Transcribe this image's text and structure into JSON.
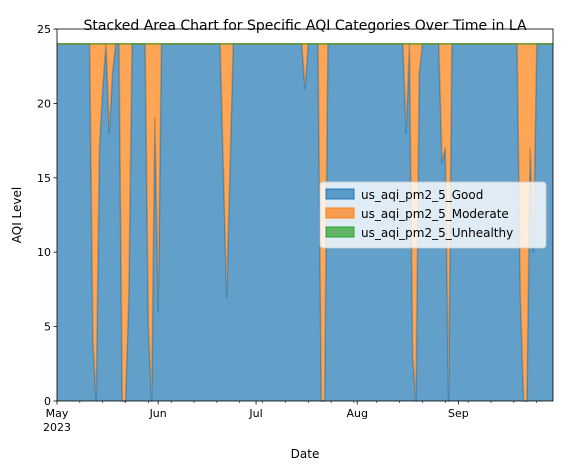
{
  "chart_data": {
    "type": "area",
    "stacked": true,
    "title": "Stacked Area Chart for Specific AQI Categories Over Time in LA",
    "xlabel": "Date",
    "ylabel": "AQI Level",
    "x_start": "2023-05-01",
    "x_end": "2023-09-30",
    "ylim": [
      0,
      25
    ],
    "y_ticks": [
      0,
      5,
      10,
      15,
      20,
      25
    ],
    "x_ticks": [
      {
        "date": "2023-05-01",
        "label": "May",
        "sublabel": "2023"
      },
      {
        "date": "2023-06-01",
        "label": "Jun",
        "sublabel": ""
      },
      {
        "date": "2023-07-01",
        "label": "Jul",
        "sublabel": ""
      },
      {
        "date": "2023-08-01",
        "label": "Aug",
        "sublabel": ""
      },
      {
        "date": "2023-09-01",
        "label": "Sep",
        "sublabel": ""
      }
    ],
    "minor_x_ticks": [
      "2023-05-08",
      "2023-05-15",
      "2023-05-22",
      "2023-05-29",
      "2023-06-05",
      "2023-06-12",
      "2023-06-19",
      "2023-06-26",
      "2023-07-03",
      "2023-07-10",
      "2023-07-17",
      "2023-07-24",
      "2023-07-31",
      "2023-08-07",
      "2023-08-14",
      "2023-08-21",
      "2023-08-28",
      "2023-09-04",
      "2023-09-11",
      "2023-09-18",
      "2023-09-25"
    ],
    "legend_position": "center-right",
    "grid": false,
    "series": [
      {
        "name": "us_aqi_pm2_5_Good",
        "color": "#1f77b4",
        "points": [
          [
            "2023-05-01",
            24
          ],
          [
            "2023-05-11",
            24
          ],
          [
            "2023-05-12",
            4
          ],
          [
            "2023-05-13",
            0
          ],
          [
            "2023-05-14",
            17
          ],
          [
            "2023-05-15",
            21
          ],
          [
            "2023-05-16",
            24
          ],
          [
            "2023-05-17",
            18
          ],
          [
            "2023-05-18",
            22
          ],
          [
            "2023-05-19",
            24
          ],
          [
            "2023-05-20",
            24
          ],
          [
            "2023-05-21",
            0
          ],
          [
            "2023-05-22",
            0
          ],
          [
            "2023-05-23",
            7
          ],
          [
            "2023-05-24",
            24
          ],
          [
            "2023-05-28",
            24
          ],
          [
            "2023-05-29",
            5
          ],
          [
            "2023-05-30",
            0
          ],
          [
            "2023-05-31",
            19
          ],
          [
            "2023-06-01",
            6
          ],
          [
            "2023-06-02",
            24
          ],
          [
            "2023-06-20",
            24
          ],
          [
            "2023-06-22",
            7
          ],
          [
            "2023-06-24",
            24
          ],
          [
            "2023-07-15",
            24
          ],
          [
            "2023-07-16",
            21
          ],
          [
            "2023-07-17",
            24
          ],
          [
            "2023-07-20",
            24
          ],
          [
            "2023-07-21",
            0
          ],
          [
            "2023-07-22",
            0
          ],
          [
            "2023-07-23",
            24
          ],
          [
            "2023-08-15",
            24
          ],
          [
            "2023-08-16",
            18
          ],
          [
            "2023-08-17",
            24
          ],
          [
            "2023-08-18",
            3
          ],
          [
            "2023-08-19",
            0
          ],
          [
            "2023-08-20",
            22
          ],
          [
            "2023-08-21",
            24
          ],
          [
            "2023-08-26",
            24
          ],
          [
            "2023-08-27",
            16
          ],
          [
            "2023-08-28",
            17
          ],
          [
            "2023-08-29",
            0
          ],
          [
            "2023-08-30",
            24
          ],
          [
            "2023-09-19",
            24
          ],
          [
            "2023-09-20",
            7
          ],
          [
            "2023-09-21",
            0
          ],
          [
            "2023-09-22",
            0
          ],
          [
            "2023-09-23",
            17
          ],
          [
            "2023-09-24",
            10
          ],
          [
            "2023-09-25",
            24
          ],
          [
            "2023-09-30",
            24
          ]
        ]
      },
      {
        "name": "us_aqi_pm2_5_Moderate",
        "color": "#ff7f0e",
        "points": [
          [
            "2023-05-01",
            0
          ],
          [
            "2023-05-11",
            0
          ],
          [
            "2023-05-12",
            20
          ],
          [
            "2023-05-13",
            24
          ],
          [
            "2023-05-14",
            7
          ],
          [
            "2023-05-15",
            3
          ],
          [
            "2023-05-16",
            0
          ],
          [
            "2023-05-17",
            6
          ],
          [
            "2023-05-18",
            2
          ],
          [
            "2023-05-19",
            0
          ],
          [
            "2023-05-20",
            0
          ],
          [
            "2023-05-21",
            24
          ],
          [
            "2023-05-22",
            24
          ],
          [
            "2023-05-23",
            17
          ],
          [
            "2023-05-24",
            0
          ],
          [
            "2023-05-28",
            0
          ],
          [
            "2023-05-29",
            19
          ],
          [
            "2023-05-30",
            24
          ],
          [
            "2023-05-31",
            5
          ],
          [
            "2023-06-01",
            18
          ],
          [
            "2023-06-02",
            0
          ],
          [
            "2023-06-20",
            0
          ],
          [
            "2023-06-22",
            17
          ],
          [
            "2023-06-24",
            0
          ],
          [
            "2023-07-15",
            0
          ],
          [
            "2023-07-16",
            3
          ],
          [
            "2023-07-17",
            0
          ],
          [
            "2023-07-20",
            0
          ],
          [
            "2023-07-21",
            24
          ],
          [
            "2023-07-22",
            24
          ],
          [
            "2023-07-23",
            0
          ],
          [
            "2023-08-15",
            0
          ],
          [
            "2023-08-16",
            6
          ],
          [
            "2023-08-17",
            0
          ],
          [
            "2023-08-18",
            21
          ],
          [
            "2023-08-19",
            24
          ],
          [
            "2023-08-20",
            2
          ],
          [
            "2023-08-21",
            0
          ],
          [
            "2023-08-26",
            0
          ],
          [
            "2023-08-27",
            8
          ],
          [
            "2023-08-28",
            7
          ],
          [
            "2023-08-29",
            24
          ],
          [
            "2023-08-30",
            0
          ],
          [
            "2023-09-19",
            0
          ],
          [
            "2023-09-20",
            17
          ],
          [
            "2023-09-21",
            24
          ],
          [
            "2023-09-22",
            24
          ],
          [
            "2023-09-23",
            7
          ],
          [
            "2023-09-24",
            14
          ],
          [
            "2023-09-25",
            0
          ],
          [
            "2023-09-30",
            0
          ]
        ]
      },
      {
        "name": "us_aqi_pm2_5_Unhealthy",
        "color": "#2ca02c",
        "points": [
          [
            "2023-05-01",
            0
          ],
          [
            "2023-09-30",
            0
          ]
        ]
      }
    ]
  }
}
